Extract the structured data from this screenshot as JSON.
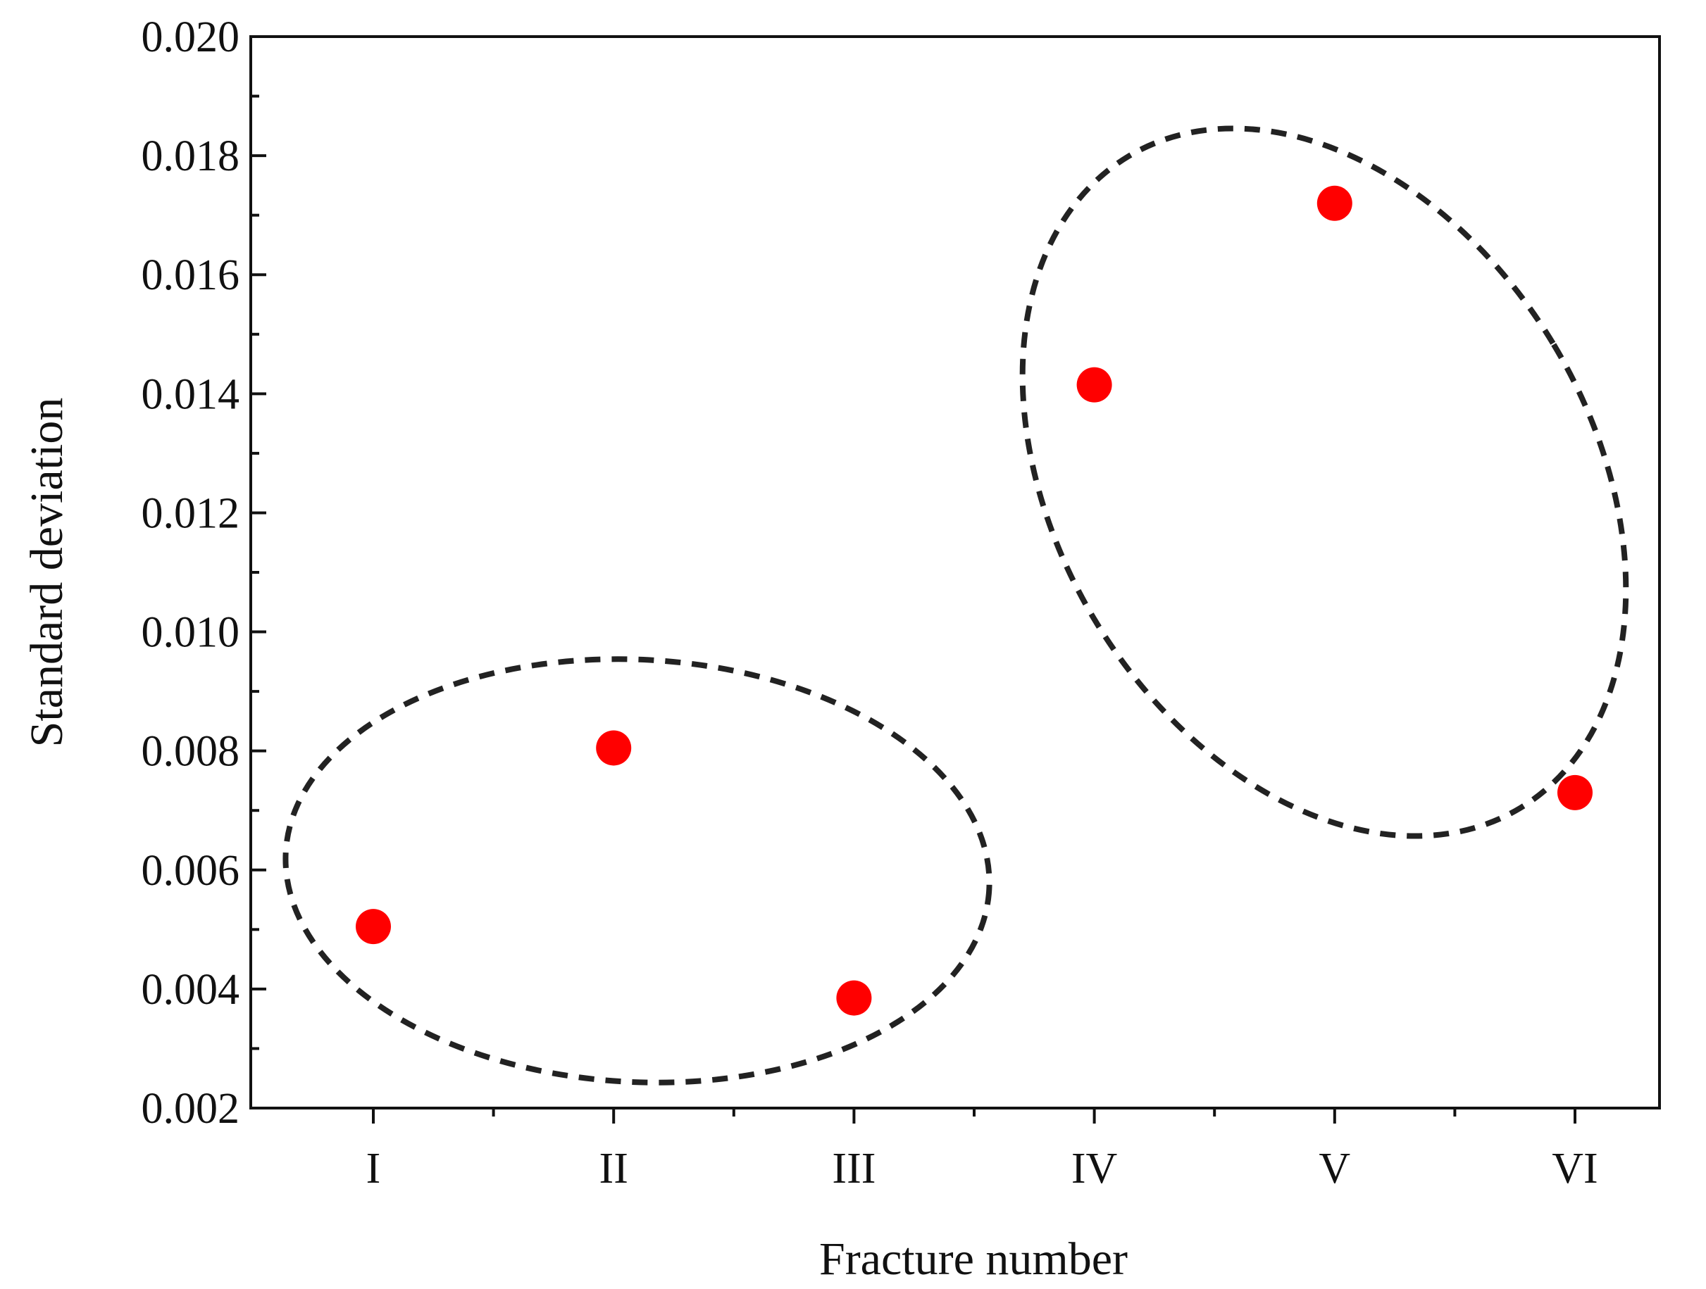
{
  "chart_data": {
    "type": "scatter",
    "title": "",
    "xlabel": "Fracture number",
    "ylabel": "Standard deviation",
    "categories": [
      "I",
      "II",
      "III",
      "IV",
      "V",
      "VI"
    ],
    "ylim": [
      0.002,
      0.02
    ],
    "yticks": [
      0.002,
      0.004,
      0.006,
      0.008,
      0.01,
      0.012,
      0.014,
      0.016,
      0.018,
      0.02
    ],
    "ytick_labels": [
      "0.002",
      "0.004",
      "0.006",
      "0.008",
      "0.010",
      "0.012",
      "0.014",
      "0.016",
      "0.018",
      "0.020"
    ],
    "grid": false,
    "legend": "none",
    "series": [
      {
        "color": "#ff0000",
        "values": [
          0.00505,
          0.00805,
          0.00385,
          0.01415,
          0.0172,
          0.0073
        ]
      }
    ],
    "annotations": [
      {
        "shape": "dashed-ellipse",
        "encloses": [
          "I",
          "II",
          "III"
        ],
        "color": "#222222"
      },
      {
        "shape": "dashed-ellipse",
        "encloses": [
          "IV",
          "V",
          "VI"
        ],
        "color": "#222222"
      }
    ]
  }
}
